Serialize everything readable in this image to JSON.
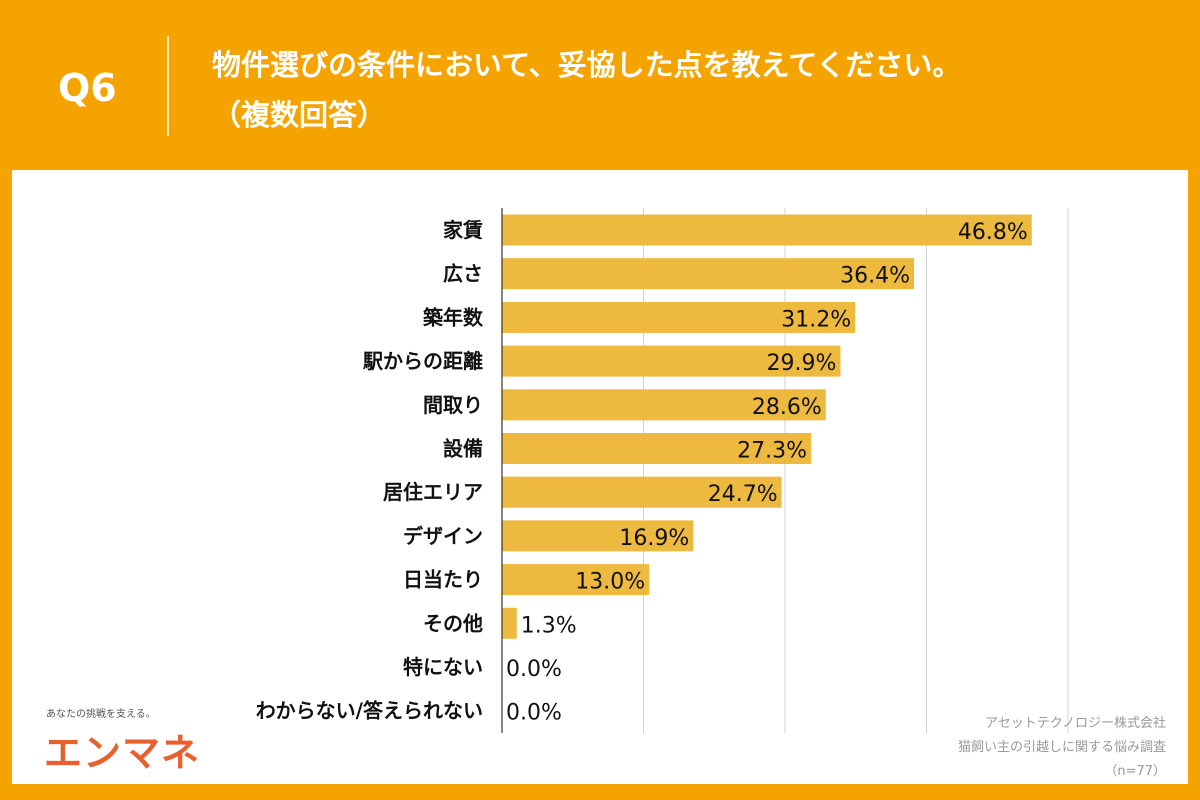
{
  "header": {
    "question": "Q6",
    "title_line1": "物件選びの条件において、妥協した点を教えてください。",
    "title_line2": "（複数回答）"
  },
  "chart_data": {
    "type": "bar",
    "orientation": "horizontal",
    "categories": [
      "家賃",
      "広さ",
      "築年数",
      "駅からの距離",
      "間取り",
      "設備",
      "居住エリア",
      "デザイン",
      "日当たり",
      "その他",
      "特にない",
      "わからない/答えられない"
    ],
    "values": [
      46.8,
      36.4,
      31.2,
      29.9,
      28.6,
      27.3,
      24.7,
      16.9,
      13.0,
      1.3,
      0.0,
      0.0
    ],
    "labels": [
      "46.8%",
      "36.4%",
      "31.2%",
      "29.9%",
      "28.6%",
      "27.3%",
      "24.7%",
      "16.9%",
      "13.0%",
      "1.3%",
      "0.0%",
      "0.0%"
    ],
    "xlim": [
      0,
      50
    ],
    "grid": true,
    "bar_color": "#EDB93E"
  },
  "footer": {
    "tagline": "あなたの挑戦を支える。",
    "logo": "エンマネ",
    "source_line1": "アセットテクノロジー株式会社",
    "source_line2": "猫飼い主の引越しに関する悩み調査",
    "sample": "（n=77）"
  },
  "colors": {
    "background": "#F5A300",
    "logo": "#E8602C"
  }
}
